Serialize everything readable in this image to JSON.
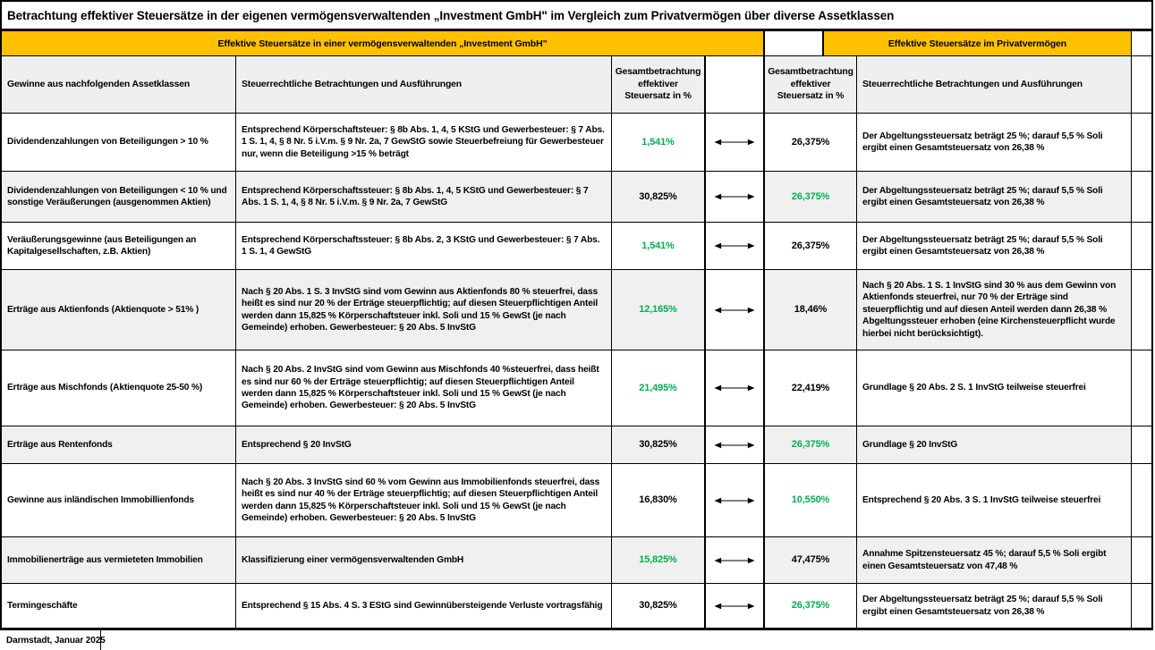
{
  "title": "Betrachtung effektiver Steuersätze in der eigenen vermögensverwaltenden „Investment GmbH\" im Vergleich zum Privatvermögen  über diverse Assetklassen",
  "sections": {
    "gmbh_header": "Effektive Steuersätze in einer vermögensverwaltenden  „Investment GmbH\"",
    "privat_header": "Effektive Steuersätze im Privatvermögen"
  },
  "columns": {
    "asset": "Gewinne aus nachfolgenden Assetklassen",
    "gmbh_notes": "Steuerrechtliche Betrachtungen und Ausführungen",
    "gmbh_rate": "Gesamtbetrachtung effektiver Steuersatz in %",
    "privat_rate": "Gesamtbetrachtung effektiver Steuersatz in %",
    "privat_notes": "Steuerrechtliche Betrachtungen und Ausführungen"
  },
  "colors": {
    "header_yellow": "#FFC000",
    "highlight_green": "#00B050",
    "shaded_row": "#F0F0F0",
    "border": "#000000"
  },
  "icons": {
    "comparison_arrow": "double-headed-arrow-icon"
  },
  "rows": [
    {
      "asset": "Dividendenzahlungen von Beteiligungen  > 10 %",
      "gmbh_notes": "Entsprechend Körperschaftsteuer: § 8b Abs. 1, 4, 5 KStG und Gewerbesteuer: § 7 Abs. 1 S. 1, 4, § 8 Nr. 5 i.V.m. § 9 Nr. 2a, 7 GewStG   sowie Steuerbefreiung für Gewerbesteuer nur, wenn die Beteiligung >15 % beträgt",
      "gmbh_rate": "1,541%",
      "gmbh_rate_green": true,
      "privat_rate": "26,375%",
      "privat_rate_green": false,
      "privat_notes": "Der Abgeltungssteuersatz beträgt 25 %; darauf 5,5 % Soli ergibt einen Gesamtsteuersatz von 26,38 %"
    },
    {
      "asset": "Dividendenzahlungen von Beteiligungen  < 10 % und sonstige Veräußerungen (ausgenommen Aktien)",
      "gmbh_notes": "Entsprechend Körperschaftssteuer: § 8b Abs. 1, 4, 5 KStG und Gewerbesteuer: § 7 Abs. 1 S. 1, 4, § 8 Nr. 5 i.V.m. § 9 Nr. 2a, 7 GewStG",
      "gmbh_rate": "30,825%",
      "gmbh_rate_green": false,
      "privat_rate": "26,375%",
      "privat_rate_green": true,
      "privat_notes": "Der Abgeltungssteuersatz beträgt 25 %; darauf 5,5 % Soli ergibt einen Gesamtsteuersatz von 26,38 %"
    },
    {
      "asset": "Veräußerungsgewinne (aus Beteiligungen an Kapitalgesellschaften, z.B. Aktien)",
      "gmbh_notes": "Entsprechend Körperschaftssteuer: § 8b Abs. 2, 3 KStG  und Gewerbesteuer: § 7 Abs. 1 S. 1, 4 GewStG",
      "gmbh_rate": "1,541%",
      "gmbh_rate_green": true,
      "privat_rate": "26,375%",
      "privat_rate_green": false,
      "privat_notes": "Der Abgeltungssteuersatz beträgt 25 %; darauf 5,5 % Soli ergibt einen Gesamtsteuersatz von 26,38 %"
    },
    {
      "asset": "Erträge aus Aktienfonds (Aktienquote > 51%  )",
      "gmbh_notes": "Nach § 20 Abs. 1 S. 3 InvStG sind vom Gewinn aus Aktienfonds 80 % steuerfrei, dass heißt es sind nur 20 % der Erträge steuerpflichtig; auf diesen Steuerpflichtigen Anteil werden dann 15,825 % Körperschaftsteuer inkl. Soli und 15 % GewSt (je nach Gemeinde) erhoben. Gewerbesteuer: § 20 Abs. 5 InvStG",
      "gmbh_rate": "12,165%",
      "gmbh_rate_green": true,
      "privat_rate": "18,46%",
      "privat_rate_green": false,
      "privat_notes": "Nach § 20 Abs. 1 S. 1 InvStG sind 30 % aus dem Gewinn von Aktienfonds steuerfrei, nur 70 % der Erträge sind steuerpflichtig und auf diesen Anteil werden dann 26,38 % Abgeltungssteuer erhoben  (eine Kirchensteuerpflicht wurde hierbei nicht berücksichtigt)."
    },
    {
      "asset": "Erträge aus Mischfonds (Aktienquote 25-50 %)",
      "gmbh_notes": "Nach § 20 Abs. 2 InvStG sind vom Gewinn aus Mischfonds 40 %steuerfrei, dass heißt es sind nur 60 % der Erträge steuerpflichtig; auf diesen Steuerpflichtigen Anteil werden dann 15,825 % Körperschaftsteuer inkl. Soli und 15 % GewSt (je nach Gemeinde) erhoben. Gewerbesteuer: § 20 Abs. 5 InvStG",
      "gmbh_rate": "21,495%",
      "gmbh_rate_green": true,
      "privat_rate": "22,419%",
      "privat_rate_green": false,
      "privat_notes": "Grundlage § 20 Abs. 2 S. 1 InvStG teilweise steuerfrei"
    },
    {
      "asset": "Erträge aus Rentenfonds",
      "gmbh_notes": "Entsprechend § 20 InvStG",
      "gmbh_rate": "30,825%",
      "gmbh_rate_green": false,
      "privat_rate": "26,375%",
      "privat_rate_green": true,
      "privat_notes": "Grundlage § 20 InvStG"
    },
    {
      "asset": "Gewinne aus inländischen Immobillienfonds",
      "gmbh_notes": "Nach § 20 Abs. 3 InvStG sind 60 % vom Gewinn aus Immobilienfonds steuerfrei, dass heißt es sind nur 40 % der Erträge steuerpflichtig; auf diesen Steuerpflichtigen Anteil werden dann 15,825 % Körperschaftsteuer inkl. Soli und 15 % GewSt (je nach Gemeinde) erhoben. Gewerbesteuer: § 20 Abs. 5 InvStG",
      "gmbh_rate": "16,830%",
      "gmbh_rate_green": false,
      "privat_rate": "10,550%",
      "privat_rate_green": true,
      "privat_notes": "Entsprechend § 20 Abs. 3 S. 1 InvStG teilweise steuerfrei"
    },
    {
      "asset": "Immobilienerträge  aus vermieteten Immobilien",
      "gmbh_notes": "Klassifizierung einer vermögensverwaltenden GmbH",
      "gmbh_rate": "15,825%",
      "gmbh_rate_green": true,
      "privat_rate": "47,475%",
      "privat_rate_green": false,
      "privat_notes": "Annahme Spitzensteuersatz  45 %; darauf 5,5 % Soli ergibt einen Gesamtsteuersatz von 47,48 %"
    },
    {
      "asset": "Termingeschäfte",
      "gmbh_notes": "Entsprechend § 15 Abs. 4 S. 3 EStG sind Gewinnübersteigende Verluste vortragsfähig",
      "gmbh_rate": "30,825%",
      "gmbh_rate_green": false,
      "privat_rate": "26,375%",
      "privat_rate_green": true,
      "privat_notes": "Der Abgeltungssteuersatz beträgt 25 %; darauf 5,5 % Soli ergibt einen Gesamtsteuersatz von 26,38 %"
    }
  ],
  "footer": {
    "location_date": "Darmstadt, Januar 2025"
  }
}
